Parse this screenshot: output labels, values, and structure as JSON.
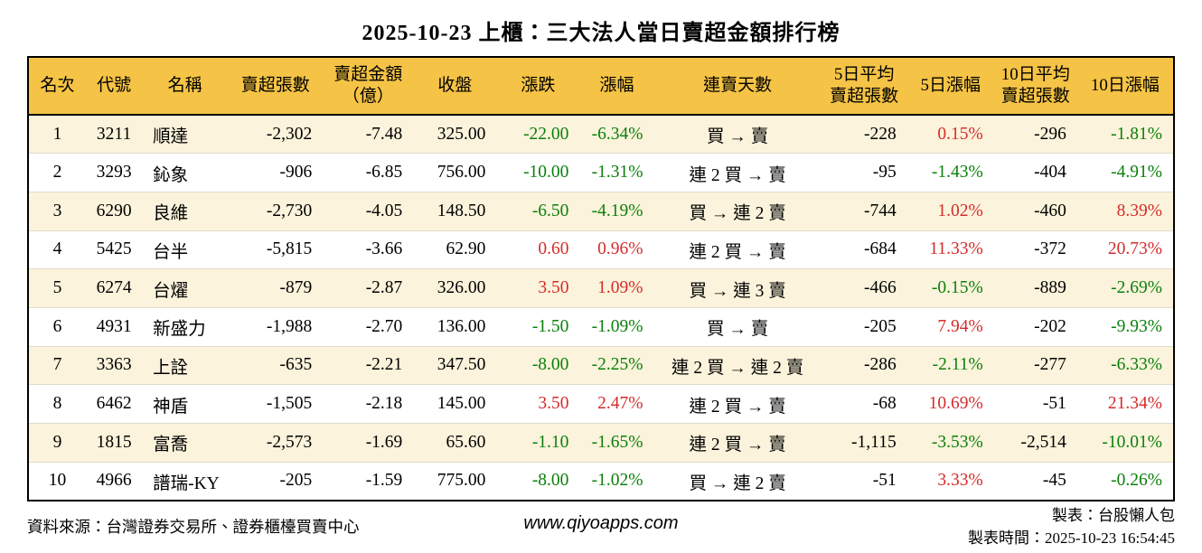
{
  "title": "2025-10-23 上櫃：三大法人當日賣超金額排行榜",
  "colors": {
    "header_bg": "#F5C345",
    "row_alt_bg": "#FBF3DB",
    "positive_red": "#D42C2C",
    "negative_green": "#0B800B",
    "border": "#000000"
  },
  "chart_data": {
    "type": "table",
    "title": "2025-10-23 上櫃：三大法人當日賣超金額排行榜",
    "columns": [
      "名次",
      "代號",
      "名稱",
      "賣超張數",
      "賣超金額\n（億）",
      "收盤",
      "漲跌",
      "漲幅",
      "連賣天數",
      "5日平均\n賣超張數",
      "5日漲幅",
      "10日平均\n賣超張數",
      "10日漲幅"
    ],
    "rows": [
      {
        "rank": "1",
        "code": "3211",
        "name": "順達",
        "vol": "-2,302",
        "amt": "-7.48",
        "close": "325.00",
        "chg": "-22.00",
        "pct": "-6.34%",
        "streak": "買 → 賣",
        "avg5": "-228",
        "pct5": "0.15%",
        "avg10": "-296",
        "pct10": "-1.81%"
      },
      {
        "rank": "2",
        "code": "3293",
        "name": "鈊象",
        "vol": "-906",
        "amt": "-6.85",
        "close": "756.00",
        "chg": "-10.00",
        "pct": "-1.31%",
        "streak": "連 2 買 → 賣",
        "avg5": "-95",
        "pct5": "-1.43%",
        "avg10": "-404",
        "pct10": "-4.91%"
      },
      {
        "rank": "3",
        "code": "6290",
        "name": "良維",
        "vol": "-2,730",
        "amt": "-4.05",
        "close": "148.50",
        "chg": "-6.50",
        "pct": "-4.19%",
        "streak": "買 → 連 2 賣",
        "avg5": "-744",
        "pct5": "1.02%",
        "avg10": "-460",
        "pct10": "8.39%"
      },
      {
        "rank": "4",
        "code": "5425",
        "name": "台半",
        "vol": "-5,815",
        "amt": "-3.66",
        "close": "62.90",
        "chg": "0.60",
        "pct": "0.96%",
        "streak": "連 2 買 → 賣",
        "avg5": "-684",
        "pct5": "11.33%",
        "avg10": "-372",
        "pct10": "20.73%"
      },
      {
        "rank": "5",
        "code": "6274",
        "name": "台燿",
        "vol": "-879",
        "amt": "-2.87",
        "close": "326.00",
        "chg": "3.50",
        "pct": "1.09%",
        "streak": "買 → 連 3 賣",
        "avg5": "-466",
        "pct5": "-0.15%",
        "avg10": "-889",
        "pct10": "-2.69%"
      },
      {
        "rank": "6",
        "code": "4931",
        "name": "新盛力",
        "vol": "-1,988",
        "amt": "-2.70",
        "close": "136.00",
        "chg": "-1.50",
        "pct": "-1.09%",
        "streak": "買 → 賣",
        "avg5": "-205",
        "pct5": "7.94%",
        "avg10": "-202",
        "pct10": "-9.93%"
      },
      {
        "rank": "7",
        "code": "3363",
        "name": "上詮",
        "vol": "-635",
        "amt": "-2.21",
        "close": "347.50",
        "chg": "-8.00",
        "pct": "-2.25%",
        "streak": "連 2 買 → 連 2 賣",
        "avg5": "-286",
        "pct5": "-2.11%",
        "avg10": "-277",
        "pct10": "-6.33%"
      },
      {
        "rank": "8",
        "code": "6462",
        "name": "神盾",
        "vol": "-1,505",
        "amt": "-2.18",
        "close": "145.00",
        "chg": "3.50",
        "pct": "2.47%",
        "streak": "連 2 買 → 賣",
        "avg5": "-68",
        "pct5": "10.69%",
        "avg10": "-51",
        "pct10": "21.34%"
      },
      {
        "rank": "9",
        "code": "1815",
        "name": "富喬",
        "vol": "-2,573",
        "amt": "-1.69",
        "close": "65.60",
        "chg": "-1.10",
        "pct": "-1.65%",
        "streak": "連 2 買 → 賣",
        "avg5": "-1,115",
        "pct5": "-3.53%",
        "avg10": "-2,514",
        "pct10": "-10.01%"
      },
      {
        "rank": "10",
        "code": "4966",
        "name": "譜瑞-KY",
        "vol": "-205",
        "amt": "-1.59",
        "close": "775.00",
        "chg": "-8.00",
        "pct": "-1.02%",
        "streak": "買 → 連 2 賣",
        "avg5": "-51",
        "pct5": "3.33%",
        "avg10": "-45",
        "pct10": "-0.26%"
      }
    ]
  },
  "footer": {
    "source": "資料來源：台灣證券交易所、證券櫃檯買賣中心",
    "website": "www.qiyoapps.com",
    "maker": "製表：台股懶人包",
    "made_at": "製表時間：2025-10-23 16:54:45"
  }
}
